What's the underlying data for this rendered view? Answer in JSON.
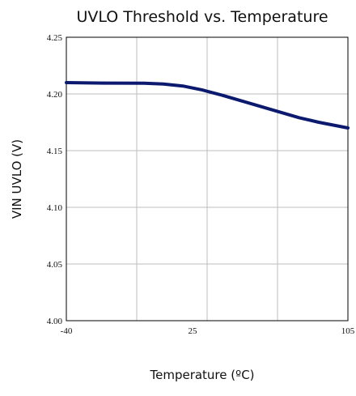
{
  "chart_data": {
    "type": "line",
    "title": "UVLO Threshold vs. Temperature",
    "xlabel": "Temperature (ºC)",
    "ylabel": "VIN UVLO (V)",
    "x_ticks": [
      "-40",
      "25",
      "105"
    ],
    "y_ticks": [
      "4.00",
      "4.05",
      "4.10",
      "4.15",
      "4.20",
      "4.25"
    ],
    "xlim": [
      -40,
      105
    ],
    "ylim": [
      4.0,
      4.25
    ],
    "grid": true,
    "line_color": "#0b1a6e",
    "series": [
      {
        "x": [
          -40,
          -20,
          0,
          10,
          20,
          30,
          40,
          50,
          60,
          70,
          80,
          90,
          105
        ],
        "y": [
          4.21,
          4.2096,
          4.2094,
          4.2088,
          4.207,
          4.2035,
          4.199,
          4.194,
          4.189,
          4.184,
          4.179,
          4.175,
          4.17
        ]
      }
    ]
  }
}
